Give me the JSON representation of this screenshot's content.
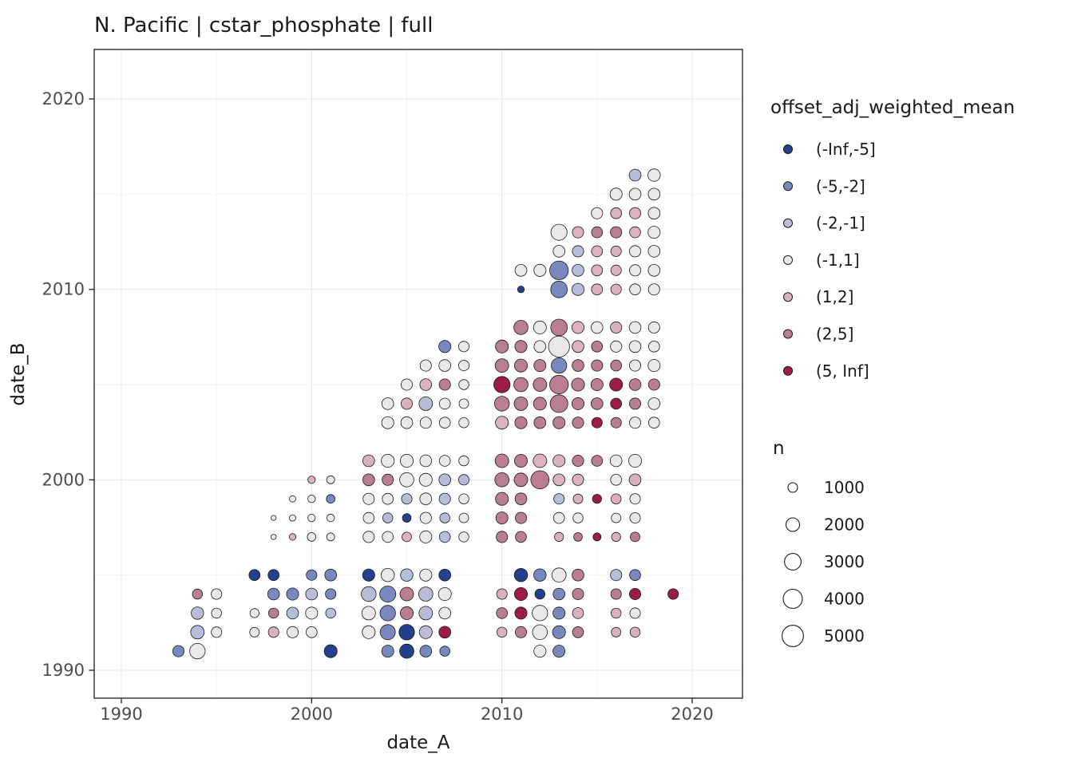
{
  "title": "N. Pacific | cstar_phosphate | full",
  "chart_data": {
    "type": "scatter",
    "subtype": "binned-bubble-matrix",
    "title": "N. Pacific | cstar_phosphate | full",
    "xlabel": "date_A",
    "ylabel": "date_B",
    "xlim": [
      1988.5,
      2022.6
    ],
    "ylim": [
      1988.5,
      2022.6
    ],
    "xticks": [
      1990,
      2000,
      2010,
      2020
    ],
    "yticks": [
      1990,
      2000,
      2010,
      2020
    ],
    "minor_ticks": [
      1995,
      2005,
      2015
    ],
    "grid": true,
    "legend_position": "right",
    "color_legend": {
      "title": "offset_adj_weighted_mean",
      "entries": [
        {
          "label": "(-Inf,-5]",
          "color": "#24418e"
        },
        {
          "label": "(-5,-2]",
          "color": "#7a88c0"
        },
        {
          "label": "(-2,-1]",
          "color": "#b7bdd9"
        },
        {
          "label": "(-1,1]",
          "color": "#e9e8ea"
        },
        {
          "label": "(1,2]",
          "color": "#d9b2bc"
        },
        {
          "label": "(2,5]",
          "color": "#b97e90"
        },
        {
          "label": "(5, Inf]",
          "color": "#9d1c47"
        }
      ]
    },
    "size_legend": {
      "title": "n",
      "entries": [
        1000,
        2000,
        3000,
        4000,
        5000
      ]
    },
    "points_format": [
      "date_A",
      "date_B",
      "color_bin_index",
      "n"
    ],
    "points": [
      [
        1993,
        1991,
        1,
        1400
      ],
      [
        1994,
        1991,
        3,
        2600
      ],
      [
        1994,
        1992,
        2,
        2000
      ],
      [
        1995,
        1992,
        3,
        1200
      ],
      [
        1994,
        1993,
        2,
        1700
      ],
      [
        1995,
        1993,
        3,
        1100
      ],
      [
        1994,
        1994,
        5,
        1100
      ],
      [
        1995,
        1994,
        3,
        1200
      ],
      [
        1997,
        1995,
        0,
        1300
      ],
      [
        1998,
        1995,
        0,
        1300
      ],
      [
        2000,
        1995,
        1,
        1200
      ],
      [
        2001,
        1995,
        1,
        1500
      ],
      [
        1998,
        1994,
        1,
        1500
      ],
      [
        1999,
        1994,
        1,
        1600
      ],
      [
        2000,
        1994,
        2,
        1500
      ],
      [
        2001,
        1994,
        1,
        1200
      ],
      [
        1997,
        1993,
        3,
        900
      ],
      [
        1998,
        1993,
        5,
        1100
      ],
      [
        1999,
        1993,
        2,
        1500
      ],
      [
        2000,
        1993,
        3,
        1600
      ],
      [
        2001,
        1993,
        2,
        1100
      ],
      [
        1997,
        1992,
        3,
        1000
      ],
      [
        1998,
        1992,
        4,
        1200
      ],
      [
        1999,
        1992,
        3,
        1400
      ],
      [
        2000,
        1992,
        3,
        1300
      ],
      [
        2001,
        1991,
        0,
        1800
      ],
      [
        2003,
        1995,
        0,
        1600
      ],
      [
        2004,
        1995,
        3,
        1900
      ],
      [
        2005,
        1995,
        2,
        1700
      ],
      [
        2006,
        1995,
        3,
        1600
      ],
      [
        2007,
        1995,
        0,
        1500
      ],
      [
        2003,
        1994,
        2,
        2400
      ],
      [
        2004,
        1994,
        1,
        2800
      ],
      [
        2005,
        1994,
        5,
        2000
      ],
      [
        2006,
        1994,
        2,
        2200
      ],
      [
        2007,
        1994,
        3,
        1800
      ],
      [
        2003,
        1993,
        3,
        2000
      ],
      [
        2004,
        1993,
        1,
        2600
      ],
      [
        2005,
        1993,
        5,
        1800
      ],
      [
        2006,
        1993,
        2,
        2000
      ],
      [
        2007,
        1993,
        3,
        1500
      ],
      [
        2003,
        1992,
        3,
        1800
      ],
      [
        2004,
        1992,
        1,
        2500
      ],
      [
        2005,
        1992,
        0,
        2600
      ],
      [
        2006,
        1992,
        2,
        1800
      ],
      [
        2007,
        1992,
        6,
        1500
      ],
      [
        2004,
        1991,
        1,
        1600
      ],
      [
        2005,
        1991,
        0,
        2200
      ],
      [
        2006,
        1991,
        1,
        1500
      ],
      [
        2007,
        1991,
        1,
        1100
      ],
      [
        2011,
        1995,
        0,
        1900
      ],
      [
        2012,
        1995,
        1,
        1700
      ],
      [
        2013,
        1995,
        3,
        2200
      ],
      [
        2014,
        1995,
        5,
        1500
      ],
      [
        2016,
        1995,
        2,
        1400
      ],
      [
        2017,
        1995,
        1,
        1300
      ],
      [
        2010,
        1994,
        4,
        1200
      ],
      [
        2011,
        1994,
        6,
        1800
      ],
      [
        2012,
        1994,
        0,
        1100
      ],
      [
        2013,
        1994,
        1,
        1500
      ],
      [
        2014,
        1994,
        5,
        1400
      ],
      [
        2016,
        1994,
        5,
        1200
      ],
      [
        2017,
        1994,
        6,
        1400
      ],
      [
        2019,
        1994,
        6,
        1200
      ],
      [
        2010,
        1993,
        5,
        1300
      ],
      [
        2011,
        1993,
        6,
        1600
      ],
      [
        2012,
        1993,
        3,
        2600
      ],
      [
        2013,
        1993,
        1,
        1600
      ],
      [
        2014,
        1993,
        4,
        1300
      ],
      [
        2016,
        1993,
        4,
        1100
      ],
      [
        2017,
        1993,
        3,
        1200
      ],
      [
        2010,
        1992,
        4,
        1100
      ],
      [
        2011,
        1992,
        5,
        1400
      ],
      [
        2012,
        1992,
        3,
        2400
      ],
      [
        2013,
        1992,
        1,
        1800
      ],
      [
        2014,
        1992,
        5,
        1300
      ],
      [
        2016,
        1992,
        4,
        1000
      ],
      [
        2017,
        1992,
        4,
        1100
      ],
      [
        2012,
        1991,
        3,
        1600
      ],
      [
        2013,
        1991,
        1,
        1600
      ],
      [
        2000,
        2000,
        4,
        600
      ],
      [
        2001,
        2000,
        3,
        700
      ],
      [
        1999,
        1999,
        3,
        450
      ],
      [
        2000,
        1999,
        3,
        650
      ],
      [
        2001,
        1999,
        1,
        800
      ],
      [
        1998,
        1998,
        3,
        280
      ],
      [
        1999,
        1998,
        3,
        450
      ],
      [
        2000,
        1998,
        3,
        600
      ],
      [
        2001,
        1998,
        3,
        650
      ],
      [
        1998,
        1997,
        3,
        300
      ],
      [
        1999,
        1997,
        4,
        500
      ],
      [
        2000,
        1997,
        3,
        800
      ],
      [
        2001,
        1997,
        3,
        700
      ],
      [
        2003,
        2001,
        4,
        1500
      ],
      [
        2004,
        2001,
        3,
        1800
      ],
      [
        2005,
        2001,
        3,
        1800
      ],
      [
        2006,
        2001,
        3,
        1500
      ],
      [
        2007,
        2001,
        3,
        1300
      ],
      [
        2008,
        2001,
        3,
        1100
      ],
      [
        2003,
        2000,
        5,
        1500
      ],
      [
        2004,
        2000,
        5,
        1400
      ],
      [
        2005,
        2000,
        3,
        2200
      ],
      [
        2006,
        2000,
        3,
        1800
      ],
      [
        2007,
        2000,
        2,
        1500
      ],
      [
        2008,
        2000,
        2,
        1200
      ],
      [
        2003,
        1999,
        3,
        1400
      ],
      [
        2004,
        1999,
        3,
        1300
      ],
      [
        2005,
        1999,
        2,
        1200
      ],
      [
        2006,
        1999,
        3,
        1500
      ],
      [
        2007,
        1999,
        2,
        1400
      ],
      [
        2008,
        1999,
        3,
        1100
      ],
      [
        2003,
        1998,
        3,
        1300
      ],
      [
        2004,
        1998,
        2,
        1100
      ],
      [
        2005,
        1998,
        0,
        800
      ],
      [
        2006,
        1998,
        3,
        1400
      ],
      [
        2007,
        1998,
        2,
        1100
      ],
      [
        2008,
        1998,
        3,
        1000
      ],
      [
        2003,
        1997,
        3,
        1400
      ],
      [
        2004,
        1997,
        3,
        1300
      ],
      [
        2005,
        1997,
        4,
        1000
      ],
      [
        2006,
        1997,
        3,
        1600
      ],
      [
        2007,
        1997,
        2,
        1300
      ],
      [
        2008,
        1997,
        3,
        1100
      ],
      [
        2010,
        2001,
        5,
        2000
      ],
      [
        2011,
        2001,
        5,
        1800
      ],
      [
        2012,
        2001,
        4,
        2000
      ],
      [
        2013,
        2001,
        4,
        1600
      ],
      [
        2014,
        2001,
        5,
        1400
      ],
      [
        2015,
        2001,
        5,
        1300
      ],
      [
        2016,
        2001,
        3,
        1500
      ],
      [
        2017,
        2001,
        3,
        1800
      ],
      [
        2010,
        2000,
        5,
        2200
      ],
      [
        2011,
        2000,
        5,
        2000
      ],
      [
        2012,
        2000,
        5,
        3600
      ],
      [
        2013,
        2000,
        4,
        1500
      ],
      [
        2014,
        2000,
        4,
        1400
      ],
      [
        2016,
        2000,
        3,
        1300
      ],
      [
        2017,
        2000,
        4,
        1500
      ],
      [
        2010,
        1999,
        5,
        1800
      ],
      [
        2011,
        1999,
        5,
        1500
      ],
      [
        2013,
        1999,
        2,
        1200
      ],
      [
        2014,
        1999,
        4,
        1000
      ],
      [
        2015,
        1999,
        6,
        900
      ],
      [
        2016,
        1999,
        4,
        1100
      ],
      [
        2017,
        1999,
        3,
        1200
      ],
      [
        2010,
        1998,
        5,
        1600
      ],
      [
        2011,
        1998,
        5,
        1400
      ],
      [
        2013,
        1998,
        3,
        1300
      ],
      [
        2014,
        1998,
        3,
        1100
      ],
      [
        2016,
        1998,
        3,
        1000
      ],
      [
        2017,
        1998,
        3,
        1200
      ],
      [
        2010,
        1997,
        5,
        1400
      ],
      [
        2011,
        1997,
        5,
        1300
      ],
      [
        2013,
        1997,
        4,
        900
      ],
      [
        2014,
        1997,
        5,
        800
      ],
      [
        2015,
        1997,
        6,
        700
      ],
      [
        2016,
        1997,
        4,
        900
      ],
      [
        2017,
        1997,
        5,
        1000
      ],
      [
        2007,
        2007,
        1,
        1600
      ],
      [
        2008,
        2007,
        3,
        1200
      ],
      [
        2006,
        2006,
        3,
        1400
      ],
      [
        2007,
        2006,
        3,
        1500
      ],
      [
        2008,
        2006,
        3,
        1200
      ],
      [
        2005,
        2005,
        3,
        1400
      ],
      [
        2006,
        2005,
        4,
        1500
      ],
      [
        2007,
        2005,
        5,
        1400
      ],
      [
        2008,
        2005,
        3,
        1100
      ],
      [
        2004,
        2004,
        3,
        1500
      ],
      [
        2005,
        2004,
        4,
        1400
      ],
      [
        2006,
        2004,
        2,
        2000
      ],
      [
        2007,
        2004,
        3,
        1300
      ],
      [
        2008,
        2004,
        3,
        1000
      ],
      [
        2004,
        2003,
        3,
        1600
      ],
      [
        2005,
        2003,
        3,
        1500
      ],
      [
        2006,
        2003,
        3,
        1400
      ],
      [
        2007,
        2003,
        3,
        1300
      ],
      [
        2008,
        2003,
        3,
        1100
      ],
      [
        2011,
        2008,
        5,
        2200
      ],
      [
        2012,
        2008,
        3,
        1800
      ],
      [
        2013,
        2008,
        5,
        3000
      ],
      [
        2014,
        2008,
        4,
        1600
      ],
      [
        2015,
        2008,
        3,
        1500
      ],
      [
        2016,
        2008,
        4,
        1400
      ],
      [
        2017,
        2008,
        3,
        1500
      ],
      [
        2018,
        2008,
        3,
        1400
      ],
      [
        2010,
        2007,
        5,
        1800
      ],
      [
        2011,
        2007,
        5,
        1600
      ],
      [
        2012,
        2007,
        3,
        1500
      ],
      [
        2013,
        2007,
        3,
        4800
      ],
      [
        2014,
        2007,
        4,
        1500
      ],
      [
        2015,
        2007,
        5,
        1300
      ],
      [
        2016,
        2007,
        3,
        1400
      ],
      [
        2017,
        2007,
        3,
        1500
      ],
      [
        2018,
        2007,
        3,
        1300
      ],
      [
        2010,
        2006,
        5,
        2000
      ],
      [
        2011,
        2006,
        5,
        1800
      ],
      [
        2012,
        2006,
        5,
        1600
      ],
      [
        2013,
        2006,
        1,
        2600
      ],
      [
        2014,
        2006,
        5,
        1500
      ],
      [
        2015,
        2006,
        5,
        1400
      ],
      [
        2016,
        2006,
        5,
        1300
      ],
      [
        2017,
        2006,
        3,
        1400
      ],
      [
        2018,
        2006,
        3,
        1600
      ],
      [
        2010,
        2005,
        6,
        2900
      ],
      [
        2011,
        2005,
        5,
        2200
      ],
      [
        2012,
        2005,
        5,
        2000
      ],
      [
        2013,
        2005,
        5,
        3800
      ],
      [
        2014,
        2005,
        5,
        1800
      ],
      [
        2015,
        2005,
        5,
        1600
      ],
      [
        2016,
        2005,
        6,
        1800
      ],
      [
        2017,
        2005,
        5,
        1500
      ],
      [
        2018,
        2005,
        5,
        1400
      ],
      [
        2010,
        2004,
        5,
        2400
      ],
      [
        2011,
        2004,
        5,
        2000
      ],
      [
        2012,
        2004,
        5,
        1800
      ],
      [
        2013,
        2004,
        5,
        3400
      ],
      [
        2014,
        2004,
        5,
        1600
      ],
      [
        2015,
        2004,
        5,
        1500
      ],
      [
        2016,
        2004,
        6,
        1300
      ],
      [
        2017,
        2004,
        5,
        1400
      ],
      [
        2018,
        2004,
        3,
        1500
      ],
      [
        2010,
        2003,
        4,
        1800
      ],
      [
        2011,
        2003,
        5,
        1600
      ],
      [
        2012,
        2003,
        5,
        1500
      ],
      [
        2013,
        2003,
        5,
        1600
      ],
      [
        2014,
        2003,
        5,
        1400
      ],
      [
        2015,
        2003,
        6,
        1200
      ],
      [
        2016,
        2003,
        5,
        1200
      ],
      [
        2017,
        2003,
        3,
        1400
      ],
      [
        2018,
        2003,
        3,
        1300
      ],
      [
        2017,
        2016,
        2,
        1500
      ],
      [
        2018,
        2016,
        3,
        1700
      ],
      [
        2016,
        2015,
        3,
        1600
      ],
      [
        2017,
        2015,
        3,
        1500
      ],
      [
        2018,
        2015,
        3,
        1500
      ],
      [
        2015,
        2014,
        3,
        1400
      ],
      [
        2016,
        2014,
        4,
        1300
      ],
      [
        2017,
        2014,
        4,
        1400
      ],
      [
        2018,
        2014,
        3,
        1500
      ],
      [
        2013,
        2013,
        3,
        2800
      ],
      [
        2014,
        2013,
        4,
        1400
      ],
      [
        2015,
        2013,
        5,
        1300
      ],
      [
        2016,
        2013,
        5,
        1400
      ],
      [
        2017,
        2013,
        4,
        1300
      ],
      [
        2018,
        2013,
        3,
        1600
      ],
      [
        2013,
        2012,
        3,
        1500
      ],
      [
        2014,
        2012,
        2,
        1400
      ],
      [
        2015,
        2012,
        4,
        1300
      ],
      [
        2016,
        2012,
        4,
        1200
      ],
      [
        2017,
        2012,
        3,
        1400
      ],
      [
        2018,
        2012,
        3,
        1500
      ],
      [
        2011,
        2011,
        3,
        1500
      ],
      [
        2012,
        2011,
        3,
        1600
      ],
      [
        2013,
        2011,
        1,
        3800
      ],
      [
        2014,
        2011,
        2,
        1500
      ],
      [
        2015,
        2011,
        4,
        1300
      ],
      [
        2016,
        2011,
        4,
        1200
      ],
      [
        2017,
        2011,
        3,
        1400
      ],
      [
        2018,
        2011,
        3,
        1500
      ],
      [
        2011,
        2010,
        0,
        500
      ],
      [
        2013,
        2010,
        1,
        3000
      ],
      [
        2014,
        2010,
        2,
        1600
      ],
      [
        2015,
        2010,
        4,
        1300
      ],
      [
        2016,
        2010,
        4,
        1200
      ],
      [
        2017,
        2010,
        3,
        1300
      ],
      [
        2018,
        2010,
        3,
        1400
      ]
    ]
  }
}
